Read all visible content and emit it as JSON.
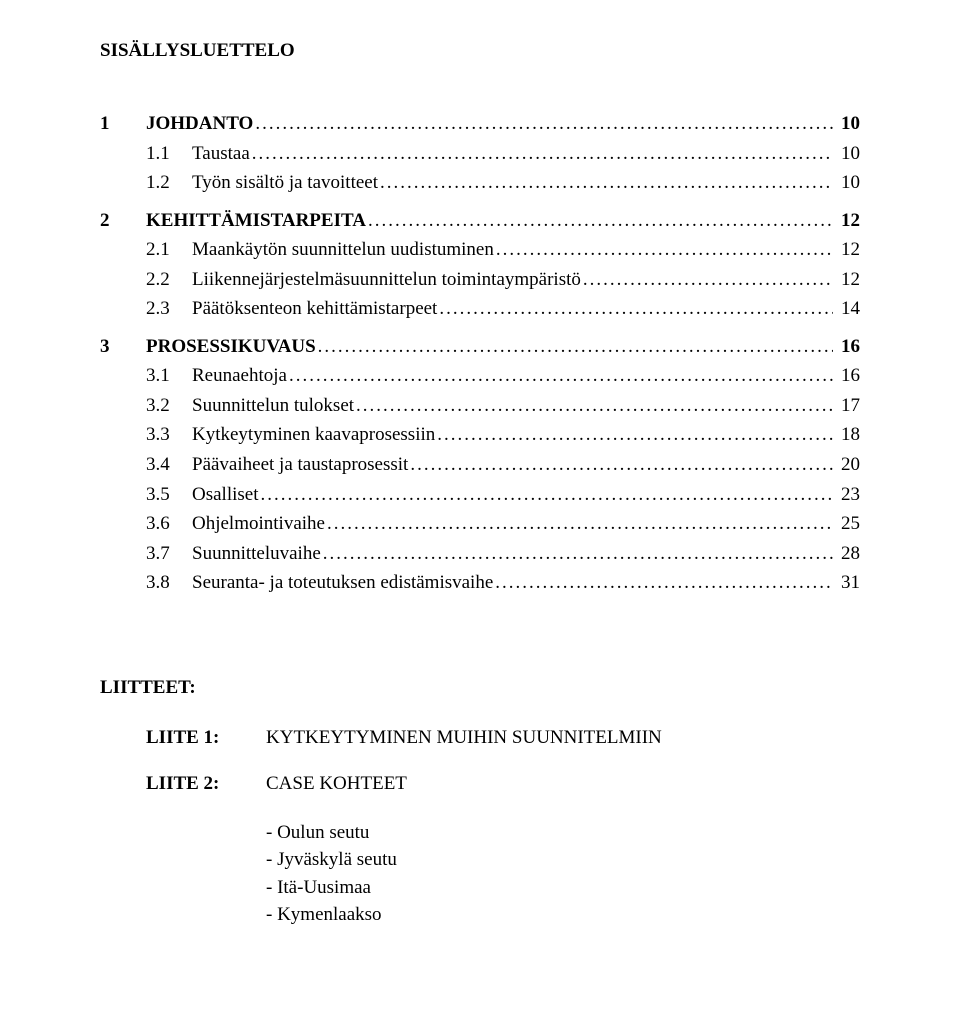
{
  "title": "SISÄLLYSLUETTELO",
  "toc": {
    "s1": {
      "num": "1",
      "label": "JOHDANTO",
      "page": "10"
    },
    "s1_1": {
      "num": "1.1",
      "label": "Taustaa",
      "page": "10"
    },
    "s1_2": {
      "num": "1.2",
      "label": "Työn sisältö ja tavoitteet",
      "page": "10"
    },
    "s2": {
      "num": "2",
      "label": "KEHITTÄMISTARPEITA",
      "page": "12"
    },
    "s2_1": {
      "num": "2.1",
      "label": "Maankäytön suunnittelun uudistuminen",
      "page": "12"
    },
    "s2_2": {
      "num": "2.2",
      "label": "Liikennejärjestelmäsuunnittelun toimintaympäristö",
      "page": "12"
    },
    "s2_3": {
      "num": "2.3",
      "label": "Päätöksenteon kehittämistarpeet",
      "page": "14"
    },
    "s3": {
      "num": "3",
      "label": "PROSESSIKUVAUS",
      "page": "16"
    },
    "s3_1": {
      "num": "3.1",
      "label": "Reunaehtoja",
      "page": "16"
    },
    "s3_2": {
      "num": "3.2",
      "label": "Suunnittelun tulokset",
      "page": "17"
    },
    "s3_3": {
      "num": "3.3",
      "label": "Kytkeytyminen kaavaprosessiin",
      "page": "18"
    },
    "s3_4": {
      "num": "3.4",
      "label": "Päävaiheet ja taustaprosessit",
      "page": "20"
    },
    "s3_5": {
      "num": "3.5",
      "label": "Osalliset",
      "page": "23"
    },
    "s3_6": {
      "num": "3.6",
      "label": "Ohjelmointivaihe",
      "page": "25"
    },
    "s3_7": {
      "num": "3.7",
      "label": "Suunnitteluvaihe",
      "page": "28"
    },
    "s3_8": {
      "num": "3.8",
      "label": "Seuranta- ja toteutuksen edistämisvaihe",
      "page": "31"
    }
  },
  "attachments": {
    "title": "LIITTEET:",
    "a1": {
      "label": "LIITE 1:",
      "value": "KYTKEYTYMINEN MUIHIN SUUNNITELMIIN"
    },
    "a2": {
      "label": "LIITE 2:",
      "value": "CASE KOHTEET"
    },
    "list": {
      "i0": "Oulun seutu",
      "i1": "Jyväskylä seutu",
      "i2": "Itä-Uusimaa",
      "i3": "Kymenlaakso"
    }
  },
  "leader": "...................................................................................................................................................................."
}
